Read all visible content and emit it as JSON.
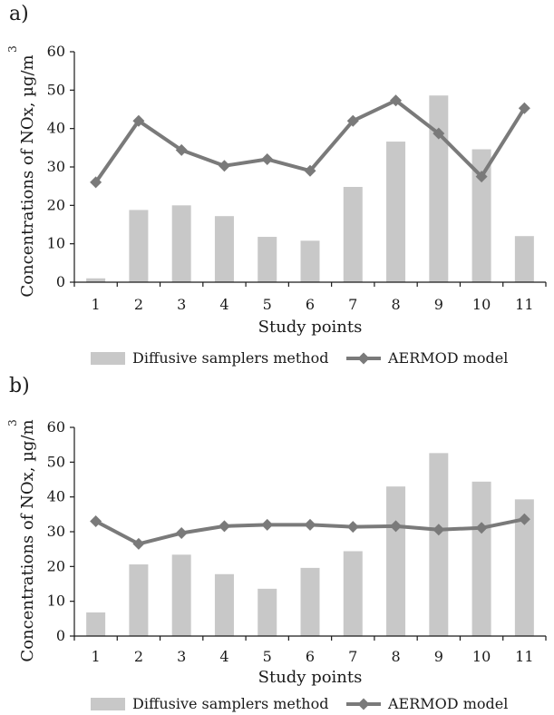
{
  "chart_data": [
    {
      "type": "bar",
      "panel_label": "a)",
      "title": "",
      "categories": [
        "1",
        "2",
        "3",
        "4",
        "5",
        "6",
        "7",
        "8",
        "9",
        "10",
        "11"
      ],
      "series": [
        {
          "name": "Diffusive samplers method",
          "kind": "bar",
          "values": [
            1,
            18.8,
            20,
            17.2,
            11.8,
            10.8,
            24.8,
            36.6,
            48.6,
            34.6,
            12
          ]
        },
        {
          "name": "AERMOD model",
          "kind": "line",
          "values": [
            26,
            42,
            34.4,
            30.3,
            32,
            29,
            42,
            47.3,
            38.7,
            27.5,
            45.3
          ]
        }
      ],
      "xlabel": "Study points",
      "ylabel": "Concentrations of NOx, µg/m",
      "ylabel_sup": "3",
      "ylim": [
        0,
        60
      ],
      "yticks": [
        "0",
        "10",
        "20",
        "30",
        "40",
        "50",
        "60"
      ],
      "grid": false,
      "legend_position": "bottom"
    },
    {
      "type": "bar",
      "panel_label": "b)",
      "title": "",
      "categories": [
        "1",
        "2",
        "3",
        "4",
        "5",
        "6",
        "7",
        "8",
        "9",
        "10",
        "11"
      ],
      "series": [
        {
          "name": "Diffusive samplers method",
          "kind": "bar",
          "values": [
            6.8,
            20.6,
            23.4,
            17.8,
            13.6,
            19.6,
            24.4,
            43,
            52.6,
            44.4,
            39.3
          ]
        },
        {
          "name": "AERMOD model",
          "kind": "line",
          "values": [
            33,
            26.5,
            29.6,
            31.6,
            32,
            32,
            31.4,
            31.6,
            30.6,
            31.1,
            33.6
          ]
        }
      ],
      "xlabel": "Study points",
      "ylabel": "Concentrations of NOx, µg/m",
      "ylabel_sup": "3",
      "ylim": [
        0,
        60
      ],
      "yticks": [
        "0",
        "10",
        "20",
        "30",
        "40",
        "50",
        "60"
      ],
      "grid": false,
      "legend_position": "bottom"
    }
  ]
}
